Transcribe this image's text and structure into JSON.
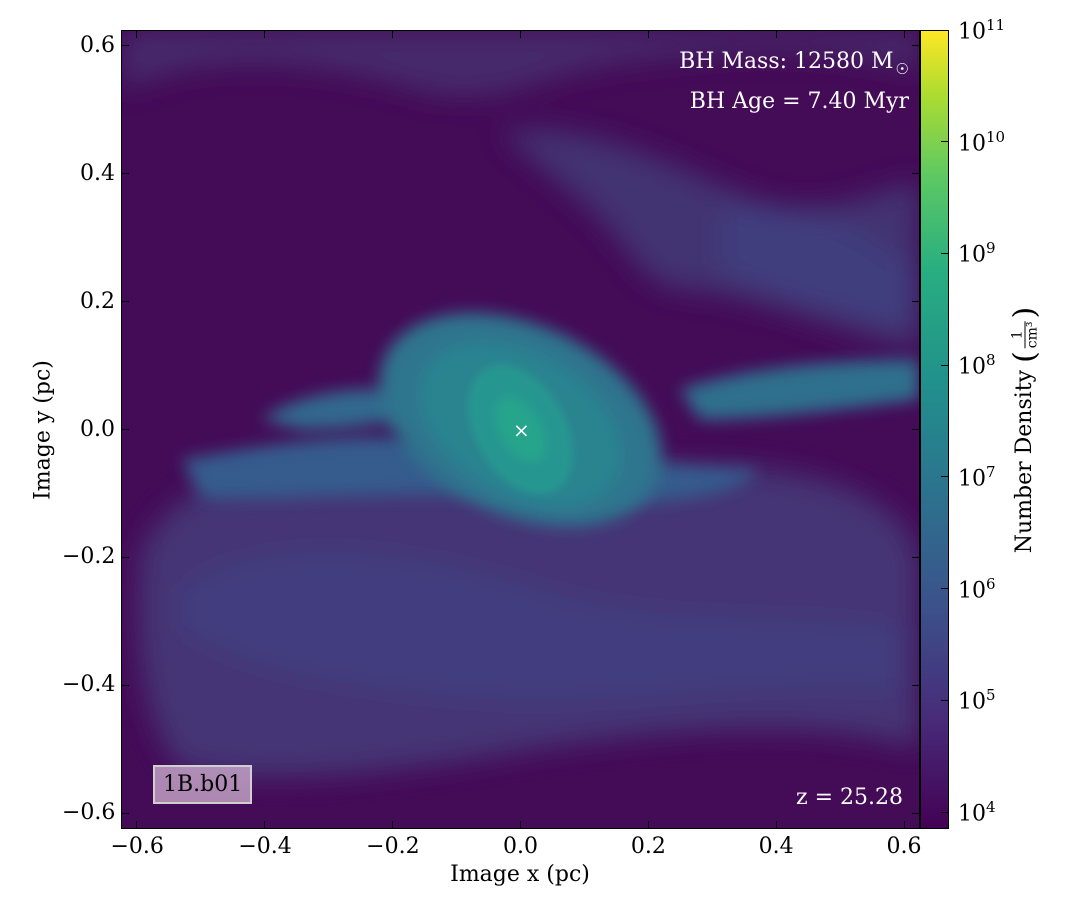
{
  "annotations": {
    "bh_mass": "BH Mass: 12580 M",
    "bh_mass_symbol": "☉",
    "bh_age": "BH Age = 7.40 Myr",
    "redshift": "z = 25.28",
    "run_label": "1B.b01",
    "bh_marker": "×"
  },
  "axes": {
    "xlabel": "Image x  (pc)",
    "ylabel": "Image y  (pc)",
    "xlim": [
      -0.625,
      0.625
    ],
    "ylim": [
      -0.625,
      0.625
    ],
    "xticks": [
      {
        "value": -0.6,
        "label": "−0.6"
      },
      {
        "value": -0.4,
        "label": "−0.4"
      },
      {
        "value": -0.2,
        "label": "−0.2"
      },
      {
        "value": 0.0,
        "label": "0.0"
      },
      {
        "value": 0.2,
        "label": "0.2"
      },
      {
        "value": 0.4,
        "label": "0.4"
      },
      {
        "value": 0.6,
        "label": "0.6"
      }
    ],
    "yticks": [
      {
        "value": 0.6,
        "label": "0.6"
      },
      {
        "value": 0.4,
        "label": "0.4"
      },
      {
        "value": 0.2,
        "label": "0.2"
      },
      {
        "value": 0.0,
        "label": "0.0"
      },
      {
        "value": -0.2,
        "label": "−0.2"
      },
      {
        "value": -0.4,
        "label": "−0.4"
      },
      {
        "value": -0.6,
        "label": "−0.6"
      }
    ]
  },
  "colorbar": {
    "label": "Number Density",
    "unit_num": "1",
    "unit_den": "cm³",
    "log_min": 3.85,
    "log_max": 11,
    "ticks": [
      {
        "base": "10",
        "exp": "11",
        "value": 11
      },
      {
        "base": "10",
        "exp": "10",
        "value": 10
      },
      {
        "base": "10",
        "exp": "9",
        "value": 9
      },
      {
        "base": "10",
        "exp": "8",
        "value": 8
      },
      {
        "base": "10",
        "exp": "7",
        "value": 7
      },
      {
        "base": "10",
        "exp": "6",
        "value": 6
      },
      {
        "base": "10",
        "exp": "5",
        "value": 5
      },
      {
        "base": "10",
        "exp": "4",
        "value": 4
      }
    ],
    "colormap": "viridis"
  },
  "bh_position": {
    "x": 0.0,
    "y": 0.0
  }
}
